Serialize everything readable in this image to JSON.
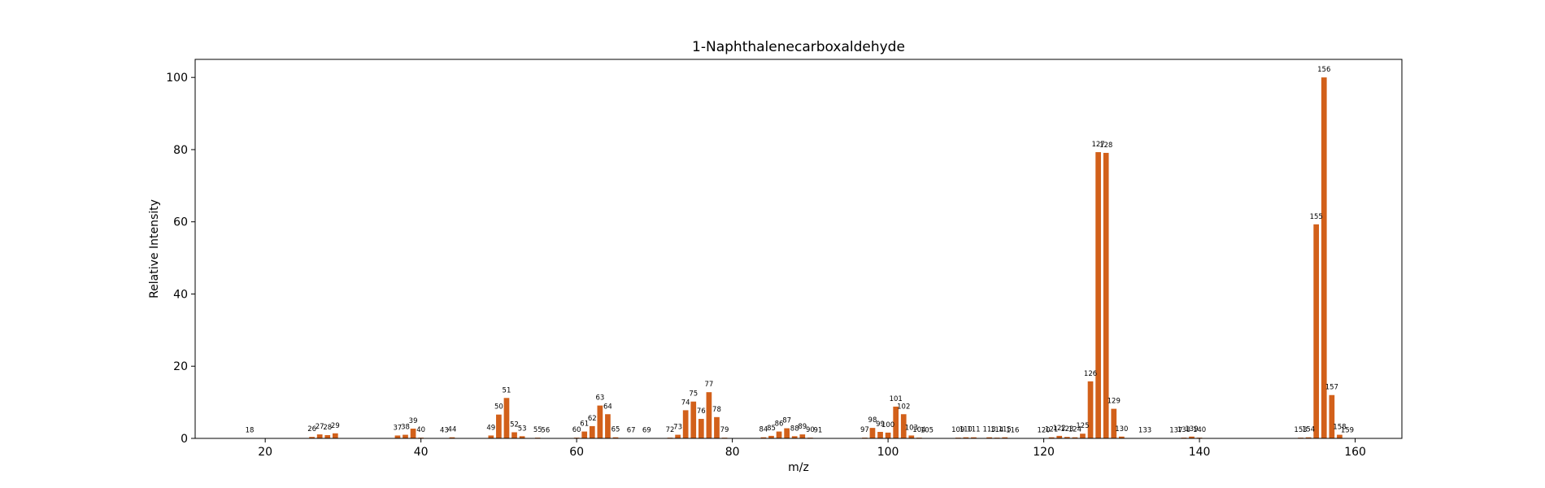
{
  "chart_data": {
    "type": "bar",
    "title": "1-Naphthalenecarboxaldehyde",
    "xlabel": "m/z",
    "ylabel": "Relative Intensity",
    "xlim": [
      11,
      166
    ],
    "ylim": [
      0,
      105
    ],
    "xticks": [
      20,
      40,
      60,
      80,
      100,
      120,
      140,
      160
    ],
    "yticks": [
      0,
      20,
      40,
      60,
      80,
      100
    ],
    "grid": false,
    "bar_color": "#d2601a",
    "points": [
      {
        "mz": 18,
        "intensity": 0.1
      },
      {
        "mz": 26,
        "intensity": 0.4
      },
      {
        "mz": 27,
        "intensity": 1.1
      },
      {
        "mz": 28,
        "intensity": 0.9
      },
      {
        "mz": 29,
        "intensity": 1.4
      },
      {
        "mz": 37,
        "intensity": 0.8
      },
      {
        "mz": 38,
        "intensity": 1.0
      },
      {
        "mz": 39,
        "intensity": 2.7
      },
      {
        "mz": 40,
        "intensity": 0.2
      },
      {
        "mz": 43,
        "intensity": 0.1
      },
      {
        "mz": 44,
        "intensity": 0.3
      },
      {
        "mz": 49,
        "intensity": 0.8
      },
      {
        "mz": 50,
        "intensity": 6.6
      },
      {
        "mz": 51,
        "intensity": 11.2
      },
      {
        "mz": 52,
        "intensity": 1.7
      },
      {
        "mz": 53,
        "intensity": 0.6
      },
      {
        "mz": 55,
        "intensity": 0.2
      },
      {
        "mz": 56,
        "intensity": 0.1
      },
      {
        "mz": 60,
        "intensity": 0.2
      },
      {
        "mz": 61,
        "intensity": 1.9
      },
      {
        "mz": 62,
        "intensity": 3.4
      },
      {
        "mz": 63,
        "intensity": 9.1
      },
      {
        "mz": 64,
        "intensity": 6.7
      },
      {
        "mz": 65,
        "intensity": 0.3
      },
      {
        "mz": 67,
        "intensity": 0.1
      },
      {
        "mz": 69,
        "intensity": 0.1
      },
      {
        "mz": 72,
        "intensity": 0.2
      },
      {
        "mz": 73,
        "intensity": 1.0
      },
      {
        "mz": 74,
        "intensity": 7.8
      },
      {
        "mz": 75,
        "intensity": 10.2
      },
      {
        "mz": 76,
        "intensity": 5.4
      },
      {
        "mz": 77,
        "intensity": 12.8
      },
      {
        "mz": 78,
        "intensity": 5.9
      },
      {
        "mz": 79,
        "intensity": 0.2
      },
      {
        "mz": 84,
        "intensity": 0.3
      },
      {
        "mz": 85,
        "intensity": 0.7
      },
      {
        "mz": 86,
        "intensity": 1.9
      },
      {
        "mz": 87,
        "intensity": 2.8
      },
      {
        "mz": 88,
        "intensity": 0.6
      },
      {
        "mz": 89,
        "intensity": 1.1
      },
      {
        "mz": 90,
        "intensity": 0.2
      },
      {
        "mz": 91,
        "intensity": 0.1
      },
      {
        "mz": 97,
        "intensity": 0.2
      },
      {
        "mz": 98,
        "intensity": 2.9
      },
      {
        "mz": 99,
        "intensity": 1.8
      },
      {
        "mz": 100,
        "intensity": 1.6
      },
      {
        "mz": 101,
        "intensity": 8.8
      },
      {
        "mz": 102,
        "intensity": 6.7
      },
      {
        "mz": 103,
        "intensity": 0.8
      },
      {
        "mz": 104,
        "intensity": 0.2
      },
      {
        "mz": 105,
        "intensity": 0.1
      },
      {
        "mz": 109,
        "intensity": 0.2
      },
      {
        "mz": 110,
        "intensity": 0.3
      },
      {
        "mz": 111,
        "intensity": 0.3
      },
      {
        "mz": 113,
        "intensity": 0.3
      },
      {
        "mz": 114,
        "intensity": 0.2
      },
      {
        "mz": 115,
        "intensity": 0.3
      },
      {
        "mz": 116,
        "intensity": 0.1
      },
      {
        "mz": 120,
        "intensity": 0.1
      },
      {
        "mz": 121,
        "intensity": 0.3
      },
      {
        "mz": 122,
        "intensity": 0.7
      },
      {
        "mz": 123,
        "intensity": 0.4
      },
      {
        "mz": 124,
        "intensity": 0.3
      },
      {
        "mz": 125,
        "intensity": 1.3
      },
      {
        "mz": 126,
        "intensity": 15.8
      },
      {
        "mz": 127,
        "intensity": 79.3
      },
      {
        "mz": 128,
        "intensity": 79.1
      },
      {
        "mz": 129,
        "intensity": 8.2
      },
      {
        "mz": 130,
        "intensity": 0.5
      },
      {
        "mz": 133,
        "intensity": 0.1
      },
      {
        "mz": 137,
        "intensity": 0.1
      },
      {
        "mz": 138,
        "intensity": 0.2
      },
      {
        "mz": 139,
        "intensity": 0.5
      },
      {
        "mz": 140,
        "intensity": 0.2
      },
      {
        "mz": 153,
        "intensity": 0.2
      },
      {
        "mz": 154,
        "intensity": 0.3
      },
      {
        "mz": 155,
        "intensity": 59.3
      },
      {
        "mz": 156,
        "intensity": 100
      },
      {
        "mz": 157,
        "intensity": 12.0
      },
      {
        "mz": 158,
        "intensity": 1.0
      },
      {
        "mz": 159,
        "intensity": 0.1
      }
    ]
  }
}
